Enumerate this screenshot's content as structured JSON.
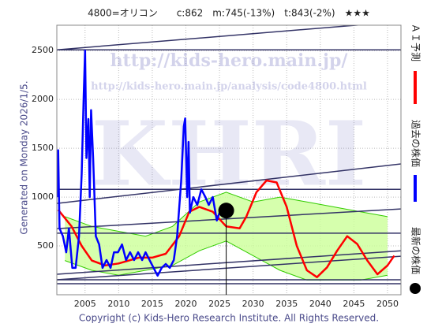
{
  "chart_data": {
    "type": "line",
    "title": "4800=オリコン　　c:862　m:745(-13%)　t:843(-2%)　★★★",
    "generated": "Generated on Monday 2026/1/5.",
    "footer": "Copyright (c) Kids-Hero Research Institute. All Rights Reserved.",
    "watermarks": [
      "http://kids-hero.main.jp/",
      "http://kids-hero.main.jp/analysis/code4800.html",
      "KHRI"
    ],
    "xlim": [
      2000.8,
      2052
    ],
    "ylim": [
      0,
      2760
    ],
    "xticks": [
      2005,
      2010,
      2015,
      2020,
      2025,
      2030,
      2035,
      2040,
      2045,
      2050
    ],
    "yticks": [
      500,
      1000,
      1500,
      2000,
      2500
    ],
    "grid": true,
    "band": {
      "color": "#33cc00",
      "fill": "#ccff99",
      "x": [
        2002,
        2006,
        2010,
        2014,
        2018,
        2022,
        2026,
        2030,
        2034,
        2038,
        2042,
        2046,
        2050
      ],
      "upper": [
        800,
        700,
        650,
        600,
        700,
        950,
        1050,
        950,
        1000,
        950,
        900,
        850,
        800
      ],
      "lower": [
        350,
        250,
        200,
        250,
        300,
        450,
        550,
        400,
        250,
        150,
        150,
        150,
        200
      ]
    },
    "trend_lines": [
      {
        "color": "#333366",
        "x": [
          2000.8,
          2052
        ],
        "values": [
          2508,
          2798
        ]
      },
      {
        "color": "#333366",
        "x": [
          2000.8,
          2052
        ],
        "values": [
          2508,
          2508
        ]
      },
      {
        "color": "#333366",
        "x": [
          2000.8,
          2052
        ],
        "values": [
          1080,
          1080
        ]
      },
      {
        "color": "#333366",
        "x": [
          2000.8,
          2052
        ],
        "values": [
          935,
          1340
        ]
      },
      {
        "color": "#333366",
        "x": [
          2000.8,
          2052
        ],
        "values": [
          677,
          879
        ]
      },
      {
        "color": "#333366",
        "x": [
          2000.8,
          2052
        ],
        "values": [
          630,
          630
        ]
      },
      {
        "color": "#333366",
        "x": [
          2000.8,
          2052
        ],
        "values": [
          210,
          450
        ]
      },
      {
        "color": "#333366",
        "x": [
          2000.8,
          2052
        ],
        "values": [
          153,
          395
        ]
      },
      {
        "color": "#333366",
        "x": [
          2000.8,
          2052
        ],
        "values": [
          153,
          153
        ]
      },
      {
        "color": "#333366",
        "x": [
          2000.8,
          2052
        ],
        "values": [
          113,
          113
        ]
      }
    ],
    "series": [
      {
        "name": "ＡＩ予測",
        "color": "#ff0000",
        "x": [
          2001,
          2003,
          2004.5,
          2006,
          2008,
          2010,
          2013,
          2015,
          2017,
          2019,
          2020.5,
          2022,
          2024,
          2026,
          2028,
          2029,
          2030.5,
          2032,
          2033.5,
          2035,
          2036.5,
          2038,
          2039.5,
          2041,
          2042.5,
          2044,
          2045.5,
          2047,
          2048.5,
          2050,
          2051
        ],
        "values": [
          870,
          700,
          500,
          350,
          300,
          320,
          380,
          380,
          420,
          600,
          850,
          900,
          850,
          700,
          680,
          800,
          1050,
          1170,
          1150,
          900,
          500,
          250,
          180,
          280,
          450,
          600,
          520,
          350,
          210,
          300,
          400
        ]
      },
      {
        "name": "過去の株価",
        "color": "#0000ff",
        "x": [
          2000.9,
          2001.0,
          2001.2,
          2001.7,
          2002.2,
          2002.6,
          2003.1,
          2003.6,
          2004.1,
          2004.5,
          2004.8,
          2005,
          2005.2,
          2005.5,
          2005.7,
          2005.9,
          2006.2,
          2006.6,
          2007.1,
          2007.6,
          2008.2,
          2008.8,
          2009.3,
          2009.9,
          2010.5,
          2011.1,
          2011.7,
          2012.3,
          2012.9,
          2013.5,
          2014.0,
          2014.6,
          2015.2,
          2015.8,
          2016.4,
          2017.0,
          2017.6,
          2018.2,
          2018.7,
          2019.3,
          2019.7,
          2019.9,
          2020.2,
          2020.4,
          2020.6,
          2021.1,
          2021.7,
          2022.3,
          2022.9,
          2023.4,
          2024.0,
          2024.6,
          2025.2,
          2025.8,
          2026.0
        ],
        "values": [
          1000,
          1480,
          680,
          600,
          435,
          680,
          275,
          275,
          600,
          1240,
          2050,
          2500,
          1400,
          1800,
          1000,
          1890,
          1400,
          600,
          515,
          275,
          355,
          275,
          435,
          435,
          515,
          355,
          435,
          355,
          435,
          355,
          435,
          355,
          275,
          195,
          275,
          315,
          275,
          355,
          600,
          1160,
          1725,
          1805,
          1000,
          1565,
          840,
          1000,
          920,
          1080,
          1000,
          920,
          1000,
          760,
          880,
          800,
          862
        ]
      }
    ],
    "latest": {
      "name": "最新の株価",
      "color": "#000000",
      "x": 2026,
      "value": 862
    }
  }
}
